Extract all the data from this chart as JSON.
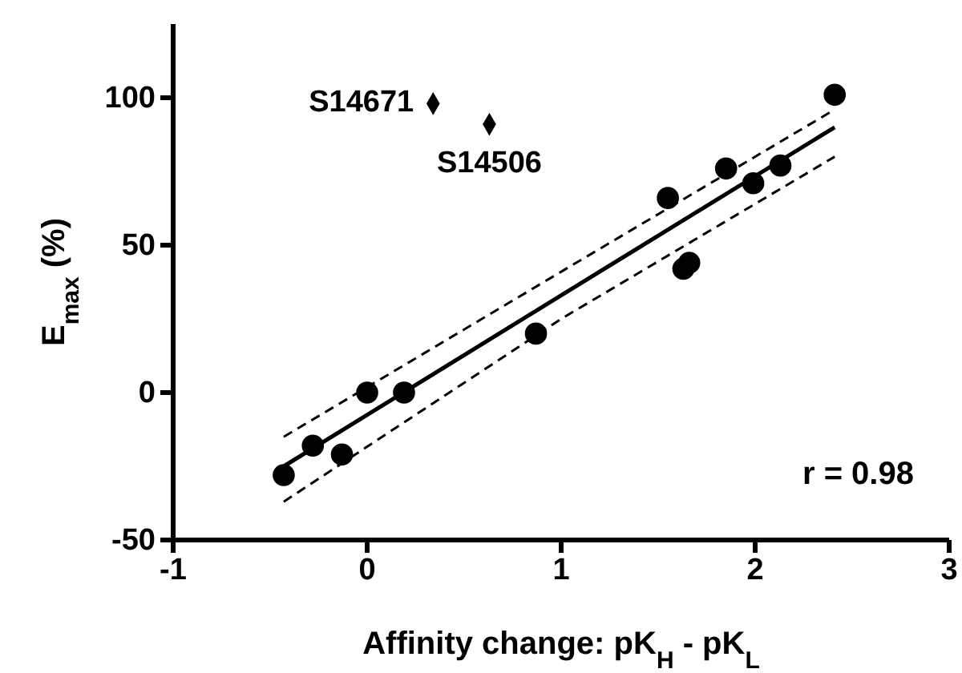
{
  "chart_data": {
    "type": "scatter",
    "xlabel": "Affinity change: pK$_{H}$ - pK$_{L}$",
    "ylabel": "E$_{max}$ (%)",
    "xlim": [
      -1,
      3
    ],
    "xticks": [
      -1,
      0,
      1,
      2,
      3
    ],
    "ylim": [
      -50,
      125
    ],
    "yticks": [
      -50,
      0,
      50,
      100
    ],
    "grid": false,
    "series": [
      {
        "type": "line",
        "line_style": "solid",
        "color": "#000000",
        "x": [
          -0.43,
          1,
          2.41
        ],
        "values": [
          -25,
          33,
          90
        ]
      },
      {
        "type": "line",
        "line_style": "dashed",
        "color": "#000000",
        "x": [
          -0.43,
          1,
          2.41
        ],
        "values": [
          -15,
          41,
          96
        ]
      },
      {
        "type": "line",
        "line_style": "dashed",
        "color": "#000000",
        "x": [
          -0.43,
          1,
          2.41
        ],
        "values": [
          -37,
          25,
          80
        ]
      },
      {
        "marker": "circle",
        "color": "#000000",
        "x": [
          -0.43,
          -0.28,
          -0.13,
          0,
          0.19,
          0.87,
          1.55,
          1.63,
          1.66,
          1.85,
          1.99,
          2.13,
          2.41
        ],
        "values": [
          -28,
          -18,
          -21,
          0,
          0,
          20,
          66,
          42,
          44,
          76,
          71,
          77,
          101
        ]
      },
      {
        "marker": "diamond",
        "color": "#000000",
        "x": [
          0.34,
          0.63
        ],
        "values": [
          98,
          91
        ]
      }
    ],
    "annotations": [
      {
        "text": "S14671",
        "x": 0.34,
        "y": 98
      },
      {
        "text": "S14506",
        "x": 0.63,
        "y": 91
      },
      "r = 0.98"
    ]
  }
}
